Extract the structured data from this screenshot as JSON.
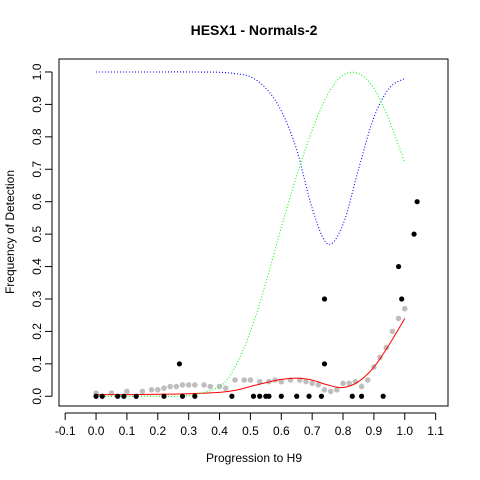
{
  "chart_data": {
    "type": "scatter",
    "title": "HESX1 - Normals-2",
    "xlabel": "Progression to H9",
    "ylabel": "Frequency of Detection",
    "xlim": [
      -0.12,
      1.14
    ],
    "ylim": [
      -0.03,
      1.04
    ],
    "xticks": [
      "-0.1",
      "0.0",
      "0.1",
      "0.2",
      "0.3",
      "0.4",
      "0.5",
      "0.6",
      "0.7",
      "0.8",
      "0.9",
      "1.0",
      "1.1"
    ],
    "yticks": [
      "0.0",
      "0.1",
      "0.2",
      "0.3",
      "0.4",
      "0.5",
      "0.6",
      "0.7",
      "0.8",
      "0.9",
      "1.0"
    ],
    "grid": false,
    "legend": "none",
    "colors": {
      "observed": "#000000",
      "smoothed": "#bebebe",
      "fit": "#ff0000",
      "fit_under": "#808000",
      "blue_curve": "#0000ff",
      "green_curve": "#00ff00"
    },
    "series": [
      {
        "style": "points",
        "color": "#000000",
        "x": [
          0.0,
          0.02,
          0.07,
          0.09,
          0.13,
          0.22,
          0.27,
          0.28,
          0.32,
          0.44,
          0.51,
          0.53,
          0.55,
          0.56,
          0.6,
          0.65,
          0.69,
          0.73,
          0.74,
          0.74,
          0.83,
          0.86,
          0.93,
          0.98,
          0.99,
          1.03,
          1.04
        ],
        "y": [
          0.0,
          0.0,
          0.0,
          0.0,
          0.0,
          0.0,
          0.1,
          0.0,
          0.0,
          0.0,
          0.0,
          0.0,
          0.0,
          0.0,
          0.0,
          0.0,
          0.0,
          0.0,
          0.3,
          0.1,
          0.0,
          0.0,
          0.0,
          0.4,
          0.3,
          0.5,
          0.6
        ]
      },
      {
        "style": "points",
        "color": "#bebebe",
        "x": [
          0.0,
          0.05,
          0.1,
          0.15,
          0.18,
          0.2,
          0.22,
          0.24,
          0.26,
          0.28,
          0.3,
          0.32,
          0.35,
          0.37,
          0.4,
          0.42,
          0.45,
          0.48,
          0.5,
          0.53,
          0.56,
          0.58,
          0.6,
          0.63,
          0.66,
          0.68,
          0.7,
          0.72,
          0.74,
          0.76,
          0.78,
          0.8,
          0.82,
          0.84,
          0.86,
          0.88,
          0.9,
          0.92,
          0.94,
          0.96,
          0.98,
          1.0
        ],
        "y": [
          0.01,
          0.01,
          0.015,
          0.015,
          0.02,
          0.02,
          0.025,
          0.03,
          0.03,
          0.035,
          0.035,
          0.035,
          0.035,
          0.03,
          0.03,
          0.025,
          0.05,
          0.05,
          0.05,
          0.045,
          0.045,
          0.05,
          0.045,
          0.05,
          0.05,
          0.045,
          0.04,
          0.035,
          0.02,
          0.015,
          0.02,
          0.04,
          0.04,
          0.045,
          0.03,
          0.05,
          0.09,
          0.12,
          0.15,
          0.2,
          0.24,
          0.27
        ]
      },
      {
        "style": "line",
        "color": "#ff0000",
        "x": [
          0.0,
          0.1,
          0.2,
          0.3,
          0.4,
          0.45,
          0.5,
          0.55,
          0.6,
          0.65,
          0.7,
          0.75,
          0.8,
          0.85,
          0.9,
          0.95,
          1.0
        ],
        "y": [
          0.005,
          0.005,
          0.006,
          0.008,
          0.012,
          0.018,
          0.03,
          0.042,
          0.052,
          0.056,
          0.05,
          0.035,
          0.027,
          0.045,
          0.09,
          0.16,
          0.24
        ]
      },
      {
        "style": "dotted",
        "color": "#0000ff",
        "x": [
          0.0,
          0.1,
          0.2,
          0.3,
          0.4,
          0.45,
          0.5,
          0.55,
          0.6,
          0.65,
          0.7,
          0.75,
          0.8,
          0.85,
          0.9,
          0.95,
          1.0
        ],
        "y": [
          1.0,
          1.0,
          1.0,
          1.0,
          0.999,
          0.995,
          0.985,
          0.95,
          0.88,
          0.76,
          0.58,
          0.47,
          0.53,
          0.7,
          0.86,
          0.95,
          0.98
        ]
      },
      {
        "style": "dotted",
        "color": "#00ff00",
        "x": [
          0.0,
          0.1,
          0.2,
          0.3,
          0.4,
          0.45,
          0.5,
          0.55,
          0.6,
          0.65,
          0.7,
          0.75,
          0.8,
          0.85,
          0.9,
          0.95,
          1.0
        ],
        "y": [
          0.0,
          0.0,
          0.0,
          0.002,
          0.03,
          0.09,
          0.2,
          0.35,
          0.52,
          0.68,
          0.82,
          0.93,
          0.99,
          0.995,
          0.95,
          0.85,
          0.72
        ]
      }
    ]
  }
}
